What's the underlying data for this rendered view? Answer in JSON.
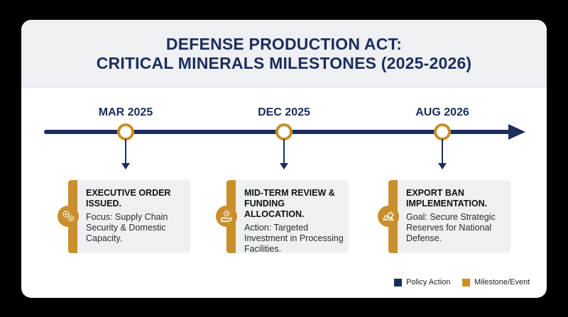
{
  "title": {
    "line1": "DEFENSE PRODUCTION ACT:",
    "line2": "CRITICAL MINERALS MILESTONES (2025-2026)"
  },
  "colors": {
    "navy": "#1b2d5c",
    "gold": "#c98f2b",
    "header_bg": "#eef0f3",
    "box_bg": "#eff0f2"
  },
  "milestones": [
    {
      "date": "MAR 2025",
      "heading": "EXECUTIVE ORDER ISSUED.",
      "body": "Focus: Supply Chain Security & Domestic Capacity.",
      "icon": "gears-icon"
    },
    {
      "date": "DEC 2025",
      "heading": "MID-TERM REVIEW & FUNDING ALLOCATION.",
      "body": "Action: Targeted Investment in Processing Facilities.",
      "icon": "hand-gear-icon"
    },
    {
      "date": "AUG 2026",
      "heading": "EXPORT BAN IMPLEMENTATION.",
      "body": "Goal: Secure Strategic Reserves for National Defense.",
      "icon": "minerals-icon"
    }
  ],
  "legend": [
    {
      "label": "Policy Action",
      "color": "#1b2d5c"
    },
    {
      "label": "Milestone/Event",
      "color": "#c98f2b"
    }
  ]
}
